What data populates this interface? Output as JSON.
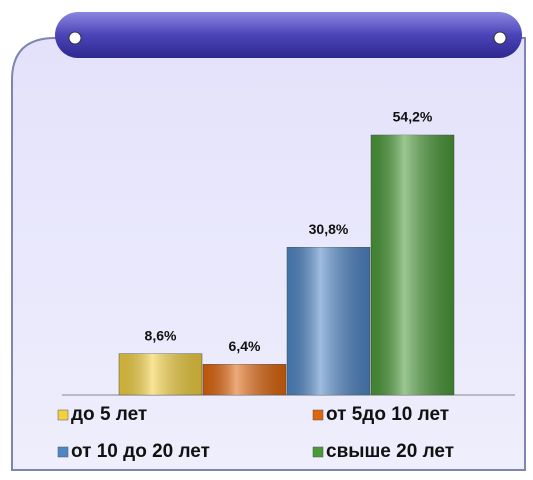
{
  "chart_data": {
    "type": "bar",
    "series": [
      {
        "name": "до 5 лет",
        "color": "#f2d040",
        "values": [
          8.6
        ],
        "value_labels": [
          "8,6%"
        ]
      },
      {
        "name": "от 5до 10 лет",
        "color": "#e0650c",
        "values": [
          6.4
        ],
        "value_labels": [
          "6,4%"
        ]
      },
      {
        "name": "от 10 до 20 лет",
        "color": "#4f86c6",
        "values": [
          30.8
        ],
        "value_labels": [
          "30,8%"
        ]
      },
      {
        "name": "свыше 20 лет",
        "color": "#4a9a38",
        "values": [
          54.2
        ],
        "value_labels": [
          "54,2%"
        ]
      }
    ],
    "legend": "bottom"
  }
}
